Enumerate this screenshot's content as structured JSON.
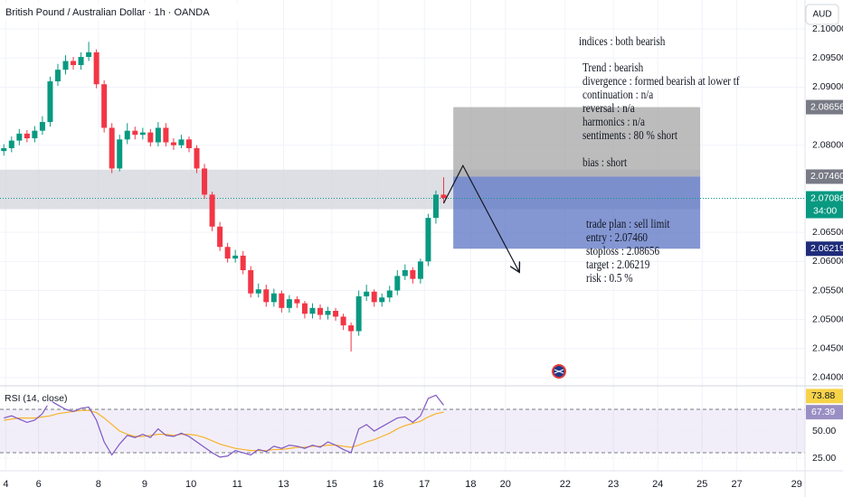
{
  "header": {
    "title": "British Pound / Australian Dollar · 1h · OANDA",
    "currency": "AUD"
  },
  "chart_data": [
    {
      "type": "candlestick",
      "x": [
        2,
        6,
        10,
        14,
        18,
        22,
        26,
        30,
        34,
        38,
        42,
        46,
        50,
        54,
        58,
        62,
        66,
        70,
        74,
        78,
        82,
        86,
        90,
        94,
        98,
        102,
        106,
        110,
        114,
        118,
        122,
        126,
        130,
        134,
        138,
        142,
        146,
        150,
        154,
        158,
        162,
        166,
        170,
        174,
        178,
        182,
        186,
        190,
        194,
        198,
        202,
        206,
        210,
        214,
        218,
        222,
        226,
        230
      ],
      "open": [
        2.079,
        2.0795,
        2.0808,
        2.082,
        2.0812,
        2.0825,
        2.084,
        2.091,
        2.093,
        2.0945,
        2.0938,
        2.0952,
        2.096,
        2.0905,
        2.083,
        2.076,
        2.081,
        2.0825,
        2.0818,
        2.0822,
        2.0805,
        2.083,
        2.0805,
        2.08,
        2.081,
        2.0795,
        2.076,
        2.0715,
        2.066,
        2.0625,
        2.0605,
        2.061,
        2.0585,
        2.0545,
        2.0552,
        2.053,
        2.0545,
        2.052,
        2.0535,
        2.0528,
        2.051,
        2.052,
        2.0508,
        2.0515,
        2.0505,
        2.049,
        2.048,
        2.054,
        2.0548,
        2.053,
        2.0538,
        2.055,
        2.0575,
        2.0585,
        2.057,
        2.06,
        2.0675,
        2.0715
      ],
      "high": [
        2.0802,
        2.0815,
        2.0828,
        2.0826,
        2.0833,
        2.085,
        2.0918,
        2.094,
        2.0955,
        2.0952,
        2.096,
        2.0978,
        2.0965,
        2.0912,
        2.0838,
        2.0818,
        2.0838,
        2.0832,
        2.083,
        2.0828,
        2.084,
        2.0838,
        2.0812,
        2.0818,
        2.0815,
        2.08,
        2.0768,
        2.072,
        2.0668,
        2.0632,
        2.062,
        2.0618,
        2.0592,
        2.0562,
        2.056,
        2.0553,
        2.055,
        2.0542,
        2.054,
        2.0532,
        2.0528,
        2.0526,
        2.0522,
        2.052,
        2.051,
        2.0495,
        2.055,
        2.056,
        2.0552,
        2.0545,
        2.0558,
        2.0585,
        2.0595,
        2.059,
        2.0605,
        2.0682,
        2.0722,
        2.0745
      ],
      "low": [
        2.0782,
        2.0788,
        2.08,
        2.0805,
        2.0805,
        2.0818,
        2.0832,
        2.0902,
        2.0922,
        2.093,
        2.093,
        2.0945,
        2.0898,
        2.0822,
        2.0752,
        2.0755,
        2.0802,
        2.081,
        2.081,
        2.0798,
        2.0798,
        2.0798,
        2.0792,
        2.0795,
        2.0788,
        2.0752,
        2.0708,
        2.0652,
        2.0618,
        2.0598,
        2.0598,
        2.0578,
        2.0538,
        2.0538,
        2.0522,
        2.0522,
        2.0512,
        2.0512,
        2.052,
        2.0502,
        2.0502,
        2.05,
        2.05,
        2.0498,
        2.0482,
        2.0445,
        2.0472,
        2.0532,
        2.0522,
        2.0522,
        2.053,
        2.0542,
        2.0568,
        2.0562,
        2.0562,
        2.0592,
        2.0665,
        2.07
      ],
      "close": [
        2.0795,
        2.0808,
        2.082,
        2.0812,
        2.0825,
        2.084,
        2.091,
        2.093,
        2.0945,
        2.0938,
        2.0952,
        2.096,
        2.0905,
        2.083,
        2.076,
        2.081,
        2.0825,
        2.0818,
        2.0822,
        2.0805,
        2.083,
        2.0805,
        2.08,
        2.081,
        2.0795,
        2.076,
        2.0715,
        2.066,
        2.0625,
        2.0605,
        2.061,
        2.0585,
        2.0545,
        2.0552,
        2.053,
        2.0545,
        2.052,
        2.0535,
        2.0528,
        2.051,
        2.052,
        2.0508,
        2.0515,
        2.0505,
        2.049,
        2.048,
        2.054,
        2.0548,
        2.053,
        2.0538,
        2.055,
        2.0575,
        2.0585,
        2.057,
        2.06,
        2.0675,
        2.0715,
        2.0709
      ],
      "up_color": "#089981",
      "down_color": "#f23645",
      "xlim": [
        0,
        415
      ],
      "xticks": [
        {
          "value": 3,
          "label": "4"
        },
        {
          "value": 20,
          "label": "6"
        },
        {
          "value": 51,
          "label": "8"
        },
        {
          "value": 75,
          "label": "9"
        },
        {
          "value": 99,
          "label": "10"
        },
        {
          "value": 123,
          "label": "11"
        },
        {
          "value": 147,
          "label": "13"
        },
        {
          "value": 172,
          "label": "15"
        },
        {
          "value": 196,
          "label": "16"
        },
        {
          "value": 220,
          "label": "17"
        },
        {
          "value": 244,
          "label": "18"
        },
        {
          "value": 262,
          "label": "20"
        },
        {
          "value": 293,
          "label": "22"
        },
        {
          "value": 318,
          "label": "23"
        },
        {
          "value": 341,
          "label": "24"
        },
        {
          "value": 364,
          "label": "25"
        },
        {
          "value": 382,
          "label": "27"
        },
        {
          "value": 413,
          "label": "29"
        }
      ],
      "ylim": [
        2.0389,
        2.105
      ],
      "yticks": [
        {
          "value": 2.1,
          "label": "2.10000"
        },
        {
          "value": 2.095,
          "label": "2.09500"
        },
        {
          "value": 2.09,
          "label": "2.09000"
        },
        {
          "value": 2.08,
          "label": "2.08000"
        },
        {
          "value": 2.065,
          "label": "2.06500"
        },
        {
          "value": 2.06,
          "label": "2.06000"
        },
        {
          "value": 2.055,
          "label": "2.05500"
        },
        {
          "value": 2.05,
          "label": "2.05000"
        },
        {
          "value": 2.045,
          "label": "2.04500"
        },
        {
          "value": 2.04,
          "label": "2.04000"
        }
      ],
      "grid": true,
      "zone": {
        "x": [
          0,
          363
        ],
        "y": [
          2.069,
          2.0758
        ],
        "color": "#d1d4dc"
      },
      "position": {
        "x": [
          235,
          363
        ],
        "stop": {
          "value": 2.08656,
          "label": "2.08656",
          "color": "#787b86"
        },
        "entry": {
          "value": 2.0746,
          "label": "2.07460",
          "color": "#787b86"
        },
        "target": {
          "value": 2.06219,
          "label": "2.06219",
          "color": "#1e2c7a"
        }
      },
      "last_price": {
        "value": 2.07086,
        "label": "2.07086",
        "countdown": "34:00",
        "color": "#089981"
      },
      "projection": {
        "x": [
          230,
          240,
          269
        ],
        "y": [
          2.07,
          2.0765,
          2.0583
        ]
      },
      "notes": [
        "indices : both bearish",
        "Trend : bearish",
        "divergence : formed bearish at lower tf",
        "continuation : n/a",
        "reversal : n/a",
        "harmonics : n/a",
        "sentiments : 80 % short",
        "bias : short"
      ],
      "plan": [
        "trade plan : sell limit",
        "entry : 2.07460",
        "stoploss : 2.08656",
        "target : 2.06219",
        "risk : 0.5 %"
      ]
    },
    {
      "type": "rsi",
      "title": "RSI (14, close)",
      "x": [
        2,
        6,
        10,
        14,
        18,
        22,
        26,
        30,
        34,
        38,
        42,
        46,
        50,
        54,
        58,
        62,
        66,
        70,
        74,
        78,
        82,
        86,
        90,
        94,
        98,
        102,
        106,
        110,
        114,
        118,
        122,
        126,
        130,
        134,
        138,
        142,
        146,
        150,
        154,
        158,
        162,
        166,
        170,
        174,
        178,
        182,
        186,
        190,
        194,
        198,
        202,
        206,
        210,
        214,
        218,
        222,
        226,
        230
      ],
      "xlim": [
        0,
        415
      ],
      "ylim": [
        14.2,
        90.8
      ],
      "yticks": [
        {
          "value": 50,
          "label": "50.00"
        },
        {
          "value": 25,
          "label": "25.00"
        }
      ],
      "band": [
        30,
        70
      ],
      "series": [
        {
          "color": "#7e57c2",
          "values": [
            62,
            64,
            61,
            58,
            60,
            66,
            78,
            74,
            70,
            68,
            71,
            72,
            60,
            40,
            28,
            38,
            46,
            44,
            47,
            44,
            52,
            46,
            45,
            48,
            45,
            40,
            35,
            30,
            26,
            27,
            32,
            30,
            28,
            33,
            31,
            36,
            34,
            37,
            36,
            34,
            37,
            35,
            40,
            37,
            33,
            30,
            52,
            56,
            50,
            54,
            58,
            62,
            63,
            58,
            64,
            80,
            83,
            73.88
          ]
        },
        {
          "color": "#f7b32b",
          "values": [
            60,
            61,
            62,
            62,
            62,
            63,
            64,
            66,
            67,
            68,
            69,
            69,
            67,
            62,
            56,
            50,
            47,
            45,
            45,
            46,
            47,
            47,
            46,
            47,
            47,
            46,
            44,
            41,
            38,
            36,
            34,
            33,
            32,
            32,
            32,
            33,
            33,
            34,
            35,
            35,
            36,
            36,
            37,
            37,
            36,
            35,
            37,
            40,
            42,
            45,
            48,
            52,
            55,
            57,
            59,
            63,
            66,
            67.39
          ]
        }
      ],
      "badges": [
        {
          "value": 73.88,
          "label": "73.88",
          "color": "#f7d34a",
          "text_color": "#131722"
        },
        {
          "value": 67.39,
          "label": "67.39",
          "color": "#9a8fc4",
          "text_color": "#ffffff"
        }
      ]
    }
  ]
}
